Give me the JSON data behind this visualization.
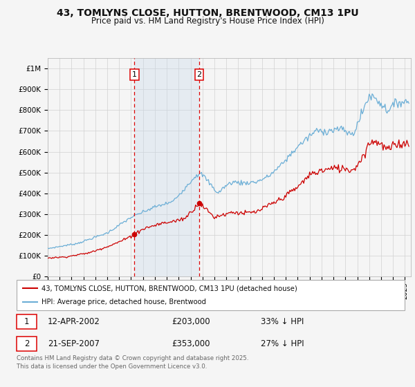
{
  "title": "43, TOMLYNS CLOSE, HUTTON, BRENTWOOD, CM13 1PU",
  "subtitle": "Price paid vs. HM Land Registry's House Price Index (HPI)",
  "ylim": [
    0,
    1000000
  ],
  "xlim_start": 1995.0,
  "xlim_end": 2025.5,
  "grid_color": "#d0d0d0",
  "background_color": "#f5f5f5",
  "plot_bg_color": "#f5f5f5",
  "sale1_date": 2002.278,
  "sale1_price": 203000,
  "sale2_date": 2007.722,
  "sale2_price": 353000,
  "sale1_text": "12-APR-2002",
  "sale1_price_str": "£203,000",
  "sale1_hpi": "33% ↓ HPI",
  "sale2_text": "21-SEP-2007",
  "sale2_price_str": "£353,000",
  "sale2_hpi": "27% ↓ HPI",
  "hpi_color": "#6baed6",
  "price_color": "#cc0000",
  "shade_color": "#c9daea",
  "vline_color": "#dd0000",
  "legend_line1": "43, TOMLYNS CLOSE, HUTTON, BRENTWOOD, CM13 1PU (detached house)",
  "legend_line2": "HPI: Average price, detached house, Brentwood",
  "footer": "Contains HM Land Registry data © Crown copyright and database right 2025.\nThis data is licensed under the Open Government Licence v3.0.",
  "ytick_labels": [
    "£0",
    "£100K",
    "£200K",
    "£300K",
    "£400K",
    "£500K",
    "£600K",
    "£700K",
    "£800K",
    "£900K",
    "£1M"
  ],
  "yticks": [
    0,
    100000,
    200000,
    300000,
    400000,
    500000,
    600000,
    700000,
    800000,
    900000,
    1000000
  ]
}
